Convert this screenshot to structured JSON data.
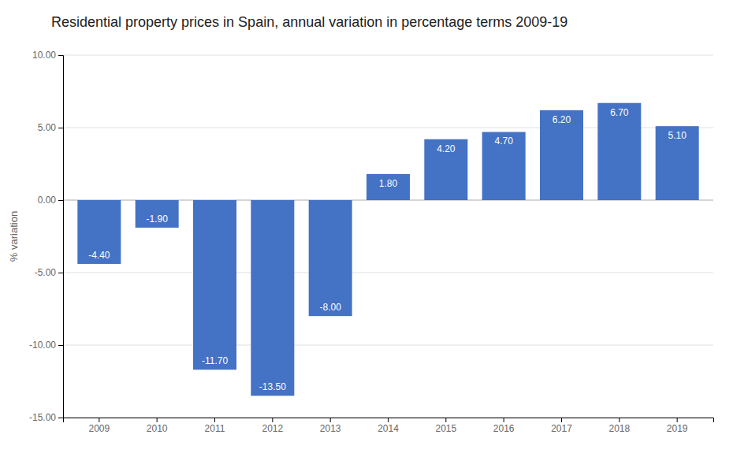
{
  "chart_data": {
    "type": "bar",
    "title": "Residential property prices in Spain, annual variation in percentage terms 2009-19",
    "ylabel": "% variation",
    "categories": [
      "2009",
      "2010",
      "2011",
      "2012",
      "2013",
      "2014",
      "2015",
      "2016",
      "2017",
      "2018",
      "2019"
    ],
    "values": [
      -4.4,
      -1.9,
      -11.7,
      -13.5,
      -8.0,
      1.8,
      4.2,
      4.7,
      6.2,
      6.7,
      5.1
    ],
    "value_labels": [
      "-4.40",
      "-1.90",
      "-11.70",
      "-13.50",
      "-8.00",
      "1.80",
      "4.20",
      "4.70",
      "6.20",
      "6.70",
      "5.10"
    ],
    "data_labels": true,
    "color": "#4472c4",
    "ylim": [
      -15.0,
      10.0
    ],
    "yticks": [
      {
        "value": -15.0,
        "label": "-15.00"
      },
      {
        "value": -10.0,
        "label": "-10.00"
      },
      {
        "value": -5.0,
        "label": "-5.00"
      },
      {
        "value": 0.0,
        "label": "0.00"
      },
      {
        "value": 5.0,
        "label": "5.00"
      },
      {
        "value": 10.0,
        "label": "10.00"
      }
    ],
    "grid": true
  }
}
